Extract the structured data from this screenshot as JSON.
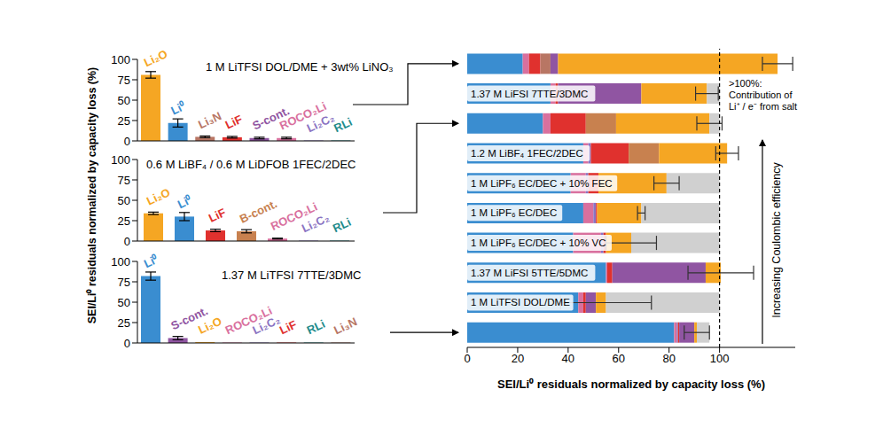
{
  "chart_data": [
    {
      "type": "bar",
      "title": "1 M LiTFSI DOL/DME + 3wt% LiNO₃",
      "categories": [
        "Li₂O",
        "Li⁰",
        "Li₃N",
        "LiF",
        "S-cont.",
        "ROCO₂Li",
        "Li₂C₂",
        "RLi"
      ],
      "values": [
        81,
        22,
        5,
        4.5,
        3.5,
        3.5,
        0.5,
        0.5
      ],
      "errors": [
        4,
        5,
        1,
        1,
        1,
        1,
        0,
        0
      ],
      "colors": [
        "#f5a623",
        "#3a8dd0",
        "#b87664",
        "#e0312e",
        "#9055a2",
        "#d9709e",
        "#8a73c2",
        "#1e8b8b"
      ],
      "ylim": [
        0,
        100
      ],
      "yticks": [
        0,
        25,
        50,
        75,
        100
      ],
      "tick_labels": "y"
    },
    {
      "type": "bar",
      "title": "0.6 M LiBF₄ / 0.6 M LiDFOB 1FEC/2DEC",
      "ylabel": "SEI/Li⁰ residuals normalized by capacity loss (%)",
      "categories": [
        "Li₂O",
        "Li⁰",
        "LiF",
        "B-cont.",
        "ROCO₂Li",
        "Li₂C₂",
        "RLi"
      ],
      "values": [
        34,
        30,
        13,
        12,
        3,
        0.5,
        0.5
      ],
      "errors": [
        1.5,
        5,
        1.5,
        2,
        0.5,
        0,
        0
      ],
      "colors": [
        "#f5a623",
        "#3a8dd0",
        "#e0312e",
        "#c8814f",
        "#d9709e",
        "#8a73c2",
        "#1e8b8b"
      ],
      "ylim": [
        0,
        100
      ],
      "yticks": [
        0,
        25,
        50,
        75,
        100
      ],
      "tick_labels": "y"
    },
    {
      "type": "bar",
      "title": "1.37 M LiTFSI 7TTE/3DMC",
      "categories": [
        "Li⁰",
        "S-cont.",
        "Li₂O",
        "ROCO₂Li",
        "Li₂C₂",
        "LiF",
        "RLi",
        "Li₃N"
      ],
      "values": [
        82,
        6,
        1,
        0.5,
        0.5,
        0.5,
        0.5,
        0.5
      ],
      "errors": [
        5,
        2,
        0,
        0,
        0,
        0,
        0,
        0
      ],
      "colors": [
        "#3a8dd0",
        "#9055a2",
        "#f5a623",
        "#d9709e",
        "#8a73c2",
        "#e0312e",
        "#1e8b8b",
        "#b87664"
      ],
      "ylim": [
        0,
        100
      ],
      "yticks": [
        0,
        25,
        50,
        75,
        100
      ],
      "tick_labels": "y"
    },
    {
      "type": "bar",
      "orientation": "horizontal",
      "stacked": true,
      "xlabel": "SEI/Li⁰ residuals normalized by capacity loss (%)",
      "categories": [
        null,
        "1.37 M LiFSI 7TTE/3DMC",
        null,
        "1.2 M LiBF₄ 1FEC/2DEC",
        "1 M LiPF₆ EC/DEC + 10% FEC",
        "1 M LiPF₆ EC/DEC",
        "1 M LiPF₆ EC/DEC + 10% VC",
        "1.37 M LiFSI 5TTE/5DMC",
        "1 M LiTFSI DOL/DME",
        null
      ],
      "series": [
        {
          "name": "Li⁰",
          "color": "#3a8dd0",
          "values": [
            22,
            33,
            30,
            46,
            41,
            46,
            42,
            55,
            44,
            82
          ]
        },
        {
          "name": "ROCO₂Li",
          "color": "#d9709e",
          "values": [
            2.5,
            2,
            3,
            2,
            6,
            4,
            11,
            0.5,
            2,
            1
          ]
        },
        {
          "name": "Li₂C₂",
          "color": "#8a73c2",
          "values": [
            0,
            0,
            0,
            1,
            1,
            1,
            1,
            0,
            0,
            0.5
          ]
        },
        {
          "name": "LiF",
          "color": "#e0312e",
          "values": [
            4.5,
            1,
            14,
            15,
            4,
            0.5,
            1,
            2,
            1,
            0.5
          ]
        },
        {
          "name": "B-cont.",
          "color": "#c8814f",
          "values": [
            0,
            0,
            12,
            12,
            0,
            0,
            0,
            0,
            0,
            0
          ]
        },
        {
          "name": "Li₃N",
          "color": "#b87664",
          "values": [
            4,
            0,
            0,
            0,
            0,
            0,
            0,
            0,
            0,
            0
          ]
        },
        {
          "name": "S-cont.",
          "color": "#9055a2",
          "values": [
            3,
            33,
            0,
            0,
            0,
            0,
            0,
            37,
            4,
            6
          ]
        },
        {
          "name": "Li₂O",
          "color": "#f5a623",
          "values": [
            87,
            26,
            37,
            27,
            27,
            17.5,
            10,
            6,
            4,
            1
          ]
        },
        {
          "color": "#d0d0d0",
          "values": [
            0,
            5,
            4,
            0,
            21,
            31,
            35,
            0,
            45,
            5
          ]
        }
      ],
      "errors": [
        6,
        4.5,
        5,
        4.5,
        5,
        1.5,
        10,
        13,
        18,
        5
      ],
      "xlim": [
        0,
        130
      ],
      "xticks": [
        0,
        20,
        40,
        60,
        80,
        100
      ],
      "reference_lines": [
        {
          "x": 100,
          "line_style": "dashed"
        }
      ],
      "annotations": [
        ">100%: Contribution of Li⁺ / e⁻ from salt",
        "Increasing Coulombic efficiency"
      ]
    }
  ]
}
